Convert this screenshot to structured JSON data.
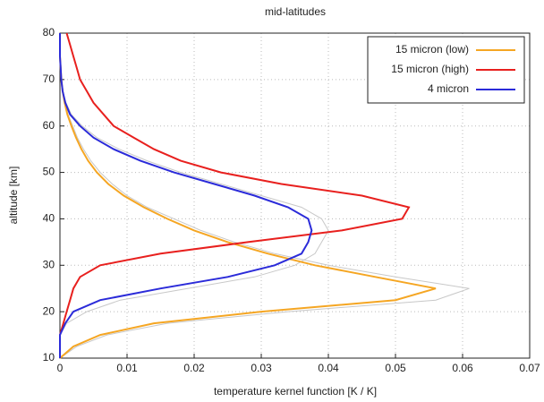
{
  "chart_data": {
    "type": "line",
    "title": "mid-latitudes",
    "x_label": "temperature kernel function [K / K]",
    "y_label": "altitude [km]",
    "y": [
      10,
      12.5,
      15,
      17.5,
      20,
      22.5,
      25,
      27.5,
      30,
      32.5,
      35,
      37.5,
      40,
      42.5,
      45,
      47.5,
      50,
      52.5,
      55,
      57.5,
      60,
      62.5,
      65,
      67.5,
      70,
      72.5,
      75,
      77.5,
      80
    ],
    "series": [
      {
        "color": "#c8c8c8",
        "values": [
          0,
          0.0025,
          0.007,
          0.016,
          0.034,
          0.056,
          0.061,
          0.05,
          0.04,
          0.032,
          0.026,
          0.021,
          0.017,
          0.013,
          0.01,
          0.0078,
          0.006,
          0.0046,
          0.0035,
          0.0026,
          0.0019,
          0.0012,
          0.0008,
          0.0004,
          0.0002,
          0.0001,
          0,
          0,
          0
        ]
      },
      {
        "color": "#c8c8c8",
        "values": [
          0,
          0,
          0,
          0.001,
          0.004,
          0.009,
          0.019,
          0.029,
          0.035,
          0.038,
          0.039,
          0.04,
          0.039,
          0.036,
          0.03,
          0.024,
          0.018,
          0.013,
          0.0088,
          0.0055,
          0.0033,
          0.0017,
          0.0009,
          0.0004,
          0.0002,
          0.0001,
          0,
          0,
          0
        ]
      },
      {
        "name": "15 micron (low)",
        "color": "#f5a623",
        "values": [
          0,
          0.002,
          0.006,
          0.014,
          0.03,
          0.05,
          0.056,
          0.047,
          0.038,
          0.031,
          0.025,
          0.02,
          0.016,
          0.0125,
          0.0095,
          0.0072,
          0.0055,
          0.0042,
          0.0032,
          0.0024,
          0.0017,
          0.0011,
          0.0007,
          0.0004,
          0.0002,
          0.0001,
          0,
          0,
          0
        ]
      },
      {
        "name": "15 micron (high)",
        "color": "#e8201e",
        "values": [
          0,
          0,
          0,
          0.0005,
          0.001,
          0.0015,
          0.002,
          0.003,
          0.006,
          0.015,
          0.028,
          0.042,
          0.051,
          0.052,
          0.045,
          0.033,
          0.024,
          0.018,
          0.014,
          0.011,
          0.008,
          0.0065,
          0.005,
          0.004,
          0.003,
          0.0025,
          0.002,
          0.0015,
          0.001
        ]
      },
      {
        "name": "4 micron",
        "color": "#2b2bd9",
        "values": [
          0,
          0,
          0,
          0.0008,
          0.002,
          0.006,
          0.015,
          0.025,
          0.032,
          0.036,
          0.037,
          0.0375,
          0.037,
          0.034,
          0.029,
          0.023,
          0.017,
          0.012,
          0.008,
          0.005,
          0.003,
          0.0015,
          0.0008,
          0.0004,
          0.0002,
          0.0001,
          0,
          0,
          0
        ]
      }
    ],
    "xlim": [
      0,
      0.07
    ],
    "xticks": [
      0,
      0.01,
      0.02,
      0.03,
      0.04,
      0.05,
      0.06,
      0.07
    ],
    "ylim": [
      10,
      80
    ],
    "yticks": [
      10,
      20,
      30,
      40,
      50,
      60,
      70,
      80
    ],
    "grid": true,
    "legend": "upper right"
  }
}
